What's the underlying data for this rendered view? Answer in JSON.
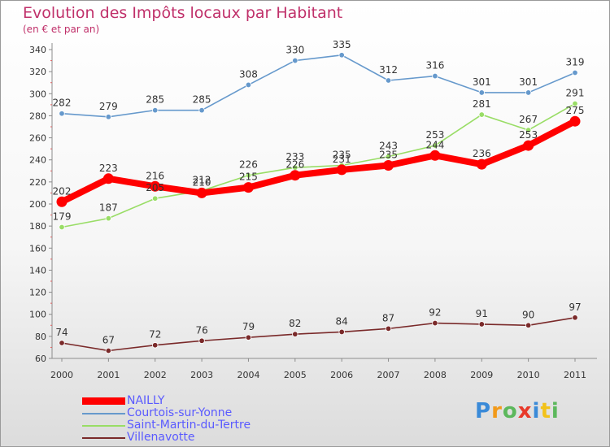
{
  "chart_data": {
    "type": "line",
    "title": "Evolution des Impôts locaux par Habitant",
    "subtitle": "(en € et par an)",
    "x": [
      "2000",
      "2001",
      "2002",
      "2003",
      "2004",
      "2005",
      "2006",
      "2007",
      "2008",
      "2009",
      "2010",
      "2011"
    ],
    "ylim": [
      60,
      340
    ],
    "yticks": [
      60,
      80,
      100,
      120,
      140,
      160,
      180,
      200,
      220,
      240,
      260,
      280,
      300,
      320,
      340
    ],
    "grid": false,
    "legend_position": "bottom-left",
    "series": [
      {
        "name": "NAILLY",
        "color": "#ff0000",
        "values": [
          202,
          223,
          216,
          210,
          215,
          226,
          231,
          235,
          244,
          236,
          253,
          275
        ]
      },
      {
        "name": "Courtois-sur-Yonne",
        "color": "#6699cc",
        "values": [
          282,
          279,
          285,
          285,
          308,
          330,
          335,
          312,
          316,
          301,
          301,
          319
        ]
      },
      {
        "name": "Saint-Martin-du-Tertre",
        "color": "#99dd66",
        "values": [
          179,
          187,
          205,
          212,
          226,
          233,
          235,
          243,
          253,
          281,
          267,
          291
        ]
      },
      {
        "name": "Villenavotte",
        "color": "#7a2a2a",
        "values": [
          74,
          67,
          72,
          76,
          79,
          82,
          84,
          87,
          92,
          91,
          90,
          97
        ]
      }
    ]
  },
  "branding": {
    "logo_letters": [
      "P",
      "r",
      "o",
      "x",
      "i",
      "t",
      "i"
    ],
    "logo_colors": [
      "#3a8ad8",
      "#f29a1a",
      "#5cb85c",
      "#e8392a",
      "#3a8ad8",
      "#f2c21a",
      "#5cb85c"
    ]
  }
}
